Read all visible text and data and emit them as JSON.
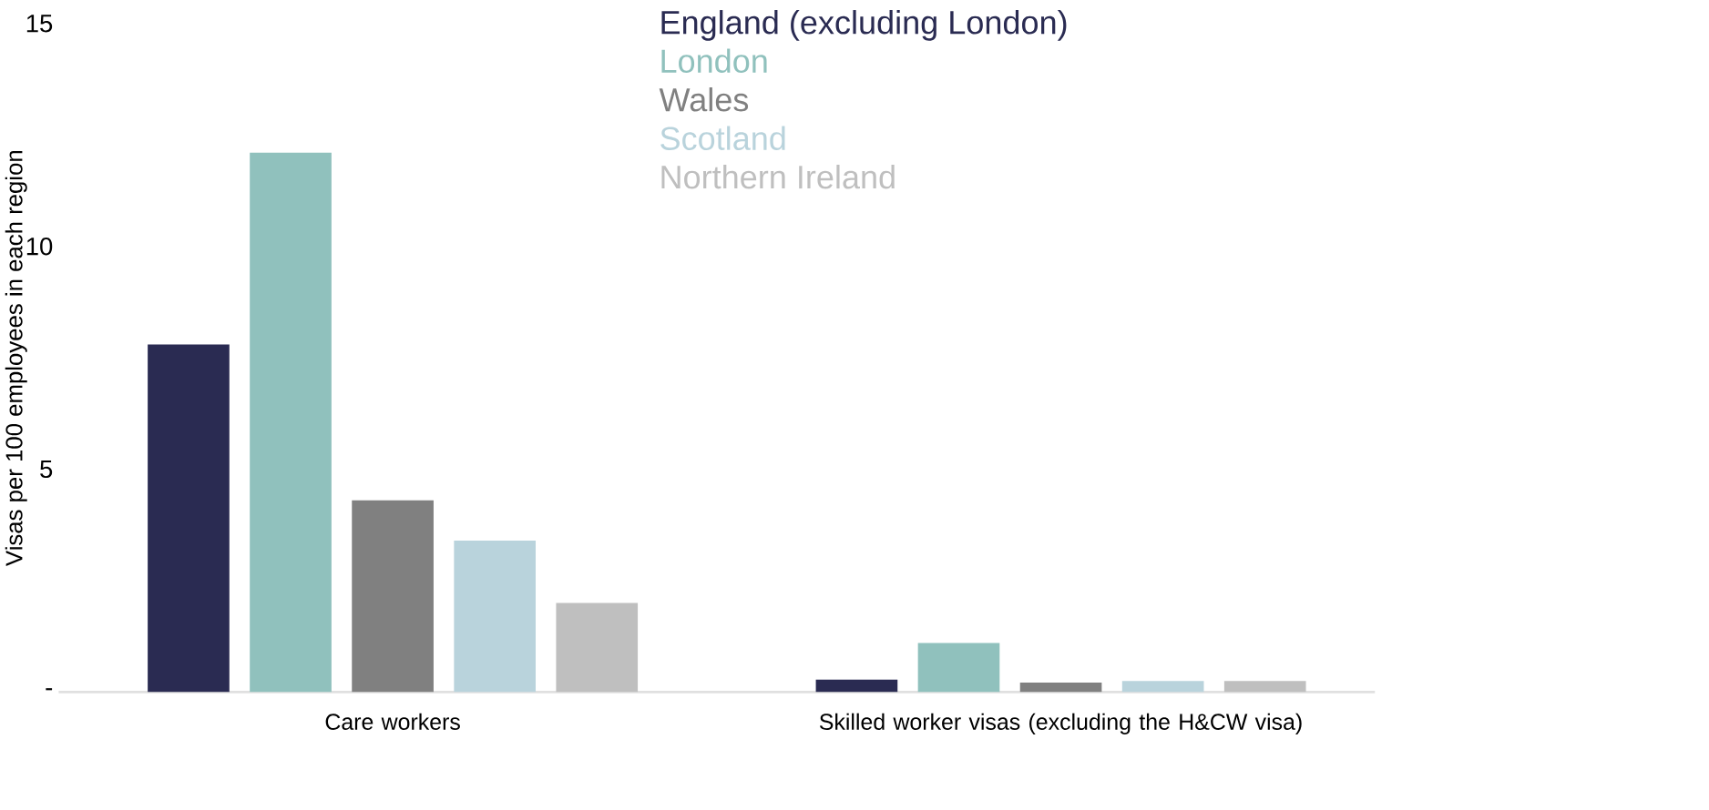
{
  "chart_data": {
    "type": "bar",
    "ylabel": "Visas per 100 employees in each region",
    "categories": [
      "Care workers",
      "Skilled worker visas (excluding the H&CW visa)"
    ],
    "series": [
      {
        "name": "England (excluding London)",
        "color": "#2a2b52",
        "values": [
          7.8,
          0.28
        ]
      },
      {
        "name": "London",
        "color": "#90c1bd",
        "values": [
          12.1,
          1.1
        ]
      },
      {
        "name": "Wales",
        "color": "#808080",
        "values": [
          4.3,
          0.21
        ]
      },
      {
        "name": "Scotland",
        "color": "#b9d3dc",
        "values": [
          3.4,
          0.25
        ]
      },
      {
        "name": "Northern Ireland",
        "color": "#bfbfbf",
        "values": [
          2.0,
          0.25
        ]
      }
    ],
    "ylim": [
      0,
      15
    ],
    "yticks": [
      {
        "value": 0,
        "label": "-"
      },
      5,
      10,
      15
    ],
    "legend": "top right"
  }
}
